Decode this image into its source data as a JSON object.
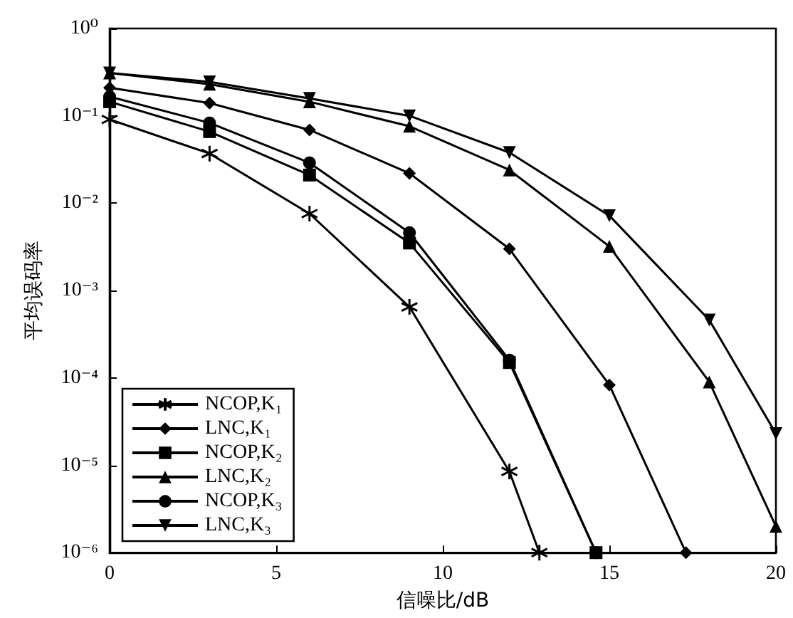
{
  "chart_data": {
    "type": "line",
    "xlabel": "信噪比/dB",
    "ylabel": "平均误码率",
    "log": "y",
    "grid": false,
    "legend": "bottom left",
    "line_style": "solid",
    "xlim": [
      0,
      20
    ],
    "xticks": [
      0,
      5,
      10,
      15,
      20
    ],
    "ylim": [
      1e-06,
      1
    ],
    "yticks": [
      {
        "value": 1e-06,
        "label": "10⁻⁶"
      },
      {
        "value": 1e-05,
        "label": "10⁻⁵"
      },
      {
        "value": 0.0001,
        "label": "10⁻⁴"
      },
      {
        "value": 0.001,
        "label": "10⁻³"
      },
      {
        "value": 0.01,
        "label": "10⁻²"
      },
      {
        "value": 0.1,
        "label": "10⁻¹"
      },
      {
        "value": 1,
        "label": "10⁰"
      }
    ],
    "series": [
      {
        "name": "NCOP,K₁",
        "color": "#000000",
        "marker": "cross",
        "x": [
          0,
          3,
          6,
          9,
          12,
          12.9
        ],
        "values": [
          0.091,
          0.037,
          0.0076,
          0.00065,
          8.5e-06,
          1e-06
        ]
      },
      {
        "name": "LNC,K₁",
        "color": "#000000",
        "marker": "diamond",
        "x": [
          0,
          3,
          6,
          9,
          12,
          15,
          17.3
        ],
        "values": [
          0.21,
          0.14,
          0.069,
          0.022,
          0.003,
          8.3e-05,
          1e-06
        ]
      },
      {
        "name": "NCOP,K₂",
        "color": "#000000",
        "marker": "square",
        "x": [
          0,
          3,
          6,
          9,
          12,
          14.6
        ],
        "values": [
          0.145,
          0.066,
          0.021,
          0.0035,
          0.00015,
          1e-06
        ]
      },
      {
        "name": "LNC,K₂",
        "color": "#000000",
        "marker": "triangle",
        "x": [
          0,
          3,
          6,
          9,
          12,
          15,
          18,
          20
        ],
        "values": [
          0.31,
          0.23,
          0.145,
          0.076,
          0.024,
          0.0032,
          9e-05,
          2e-06
        ]
      },
      {
        "name": "NCOP,K₃",
        "color": "#000000",
        "marker": "circle",
        "x": [
          0,
          3,
          6,
          9,
          12,
          14.6
        ],
        "values": [
          0.166,
          0.083,
          0.029,
          0.0046,
          0.00016,
          1e-06
        ]
      },
      {
        "name": "LNC,K₃",
        "color": "#000000",
        "marker": "triangle-down",
        "x": [
          0,
          3,
          6,
          9,
          12,
          15,
          18,
          20
        ],
        "values": [
          0.31,
          0.245,
          0.158,
          0.1,
          0.038,
          0.0072,
          0.00046,
          2.3e-05
        ]
      }
    ]
  }
}
